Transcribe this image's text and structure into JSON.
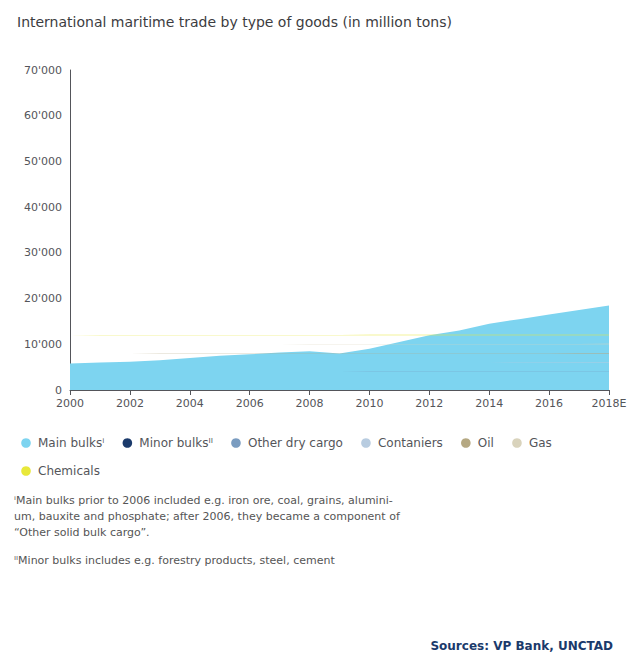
{
  "chart_data": {
    "type": "area",
    "title": "International maritime trade by type of goods (in million tons)",
    "x": [
      2000,
      2001,
      2002,
      2003,
      2004,
      2005,
      2006,
      2007,
      2008,
      2009,
      2010,
      2011,
      2012,
      2013,
      2014,
      2015,
      2016,
      2017,
      2018
    ],
    "series": [
      {
        "name": "Main bulksⁱ",
        "color": "#7DD4F0",
        "values": [
          5800,
          6000,
          6200,
          6500,
          7000,
          7500,
          7800,
          8200,
          8500,
          8000,
          9000,
          10500,
          12000,
          13000,
          14500,
          15500,
          16500,
          17500,
          18500
        ]
      },
      {
        "name": "Minor bulksᴵᴵ",
        "color": "#1B3A6B",
        "values": [
          6200,
          6400,
          6500,
          6800,
          7200,
          7600,
          8000,
          8500,
          9000,
          8500,
          9500,
          10500,
          11000,
          11500,
          12000,
          12500,
          13000,
          13500,
          11000
        ]
      },
      {
        "name": "Other dry cargo",
        "color": "#7A9CC0",
        "values": [
          1800,
          1900,
          2000,
          2100,
          2300,
          2500,
          2600,
          2800,
          3000,
          2800,
          3200,
          3500,
          4000,
          4500,
          5000,
          5500,
          6000,
          6500,
          8000
        ]
      },
      {
        "name": "Contaniers",
        "color": "#B8CCE0",
        "values": [
          1700,
          1800,
          1900,
          2100,
          2300,
          2500,
          2700,
          2900,
          3000,
          2700,
          3100,
          3500,
          3800,
          4000,
          4300,
          4500,
          4700,
          5000,
          5300
        ]
      },
      {
        "name": "Oil",
        "color": "#B5A882",
        "values": [
          12500,
          12300,
          12500,
          12600,
          12800,
          13000,
          12500,
          12000,
          11800,
          11200,
          11500,
          11800,
          12000,
          12200,
          12500,
          12300,
          12600,
          13000,
          13500
        ]
      },
      {
        "name": "Gas",
        "color": "#D9D3BC",
        "values": [
          1500,
          1550,
          1600,
          1700,
          1800,
          1900,
          2000,
          2100,
          2200,
          2100,
          2200,
          2400,
          2600,
          2800,
          3000,
          3200,
          3400,
          3600,
          3800
        ]
      },
      {
        "name": "Chemicals",
        "color": "#E8E83A",
        "values": [
          800,
          820,
          850,
          880,
          920,
          960,
          1000,
          1050,
          1100,
          1000,
          1100,
          1200,
          1300,
          1400,
          1500,
          1600,
          1700,
          1800,
          1900
        ]
      }
    ],
    "xlim": [
      2000,
      2018
    ],
    "xticks": [
      2000,
      2002,
      2004,
      2006,
      2008,
      2010,
      2012,
      2014,
      2016,
      {
        "value": 2018,
        "label": "2018E"
      }
    ],
    "ylim": [
      0,
      70000
    ],
    "yticks": [
      0,
      {
        "value": 10000,
        "label": "10'000"
      },
      {
        "value": 20000,
        "label": "20'000"
      },
      {
        "value": 30000,
        "label": "30'000"
      },
      {
        "value": 40000,
        "label": "40'000"
      },
      {
        "value": 50000,
        "label": "50'000"
      },
      {
        "value": 60000,
        "label": "60'000"
      },
      {
        "value": 70000,
        "label": "70'000"
      }
    ],
    "stacked": true,
    "grid": false,
    "legend": "bottom",
    "annotations": [
      "ⁱMain bulks prior to 2006 included e.g. iron ore, coal, grains, alumini-\num, bauxite and phosphate; after 2006, they became a component of\n“Other solid bulk cargo”.",
      "ᴵᴵMinor bulks includes e.g. forestry products, steel, cement",
      "Sources: VP Bank, UNCTAD"
    ]
  }
}
